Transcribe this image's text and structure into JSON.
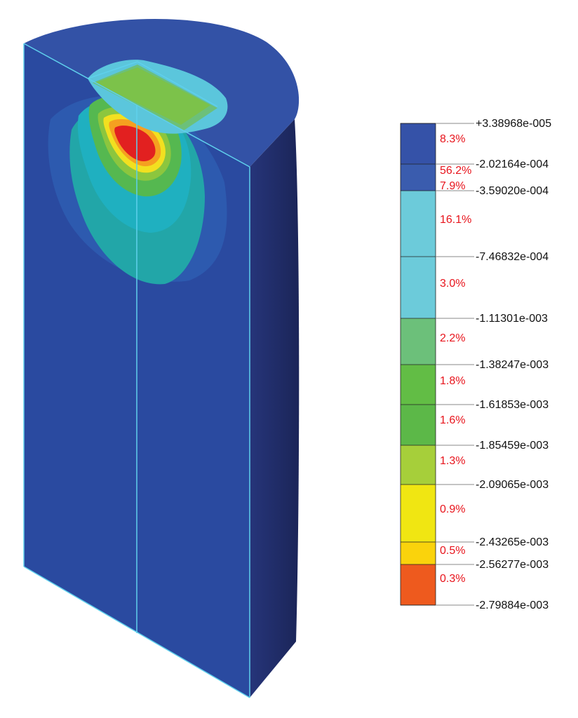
{
  "legend": {
    "values": [
      "+3.38968e-005",
      "-2.02164e-004",
      "-3.59020e-004",
      "-7.46832e-004",
      "-1.11301e-003",
      "-1.38247e-003",
      "-1.61853e-003",
      "-1.85459e-003",
      "-2.09065e-003",
      "-2.43265e-003",
      "-2.56277e-003",
      "-2.79884e-003"
    ],
    "bands": [
      {
        "percent": "8.3%",
        "color": "#3552a8"
      },
      {
        "percent": "56.2%",
        "color": "#3a5cae"
      },
      {
        "percent": "7.9%",
        "color": "#6ccbda"
      },
      {
        "percent": "16.1%",
        "color": "#6ccbda"
      },
      {
        "percent": "3.0%",
        "color": "#6cc07a"
      },
      {
        "percent": "2.2%",
        "color": "#62bd45"
      },
      {
        "percent": "1.8%",
        "color": "#5cb848"
      },
      {
        "percent": "1.6%",
        "color": "#a6cf3a"
      },
      {
        "percent": "1.3%",
        "color": "#f0e612"
      },
      {
        "percent": "0.9%",
        "color": "#fad30c"
      },
      {
        "percent": "0.5%",
        "color": "#ee5a1e"
      },
      {
        "percent": "0.3%",
        "color": "#e8222a"
      }
    ]
  },
  "colors": {
    "body_front": "#2a4aa0",
    "body_top": "#3352a6",
    "body_side": "#1e2a62",
    "edge_line": "#5fd0ec",
    "contour_cyan": "#1fb0c0",
    "contour_teal": "#22a6a8",
    "contour_green": "#55b850",
    "contour_lime": "#8cc63e",
    "contour_yellow": "#f2e020",
    "contour_orange": "#f5a020",
    "contour_red": "#e22020"
  }
}
